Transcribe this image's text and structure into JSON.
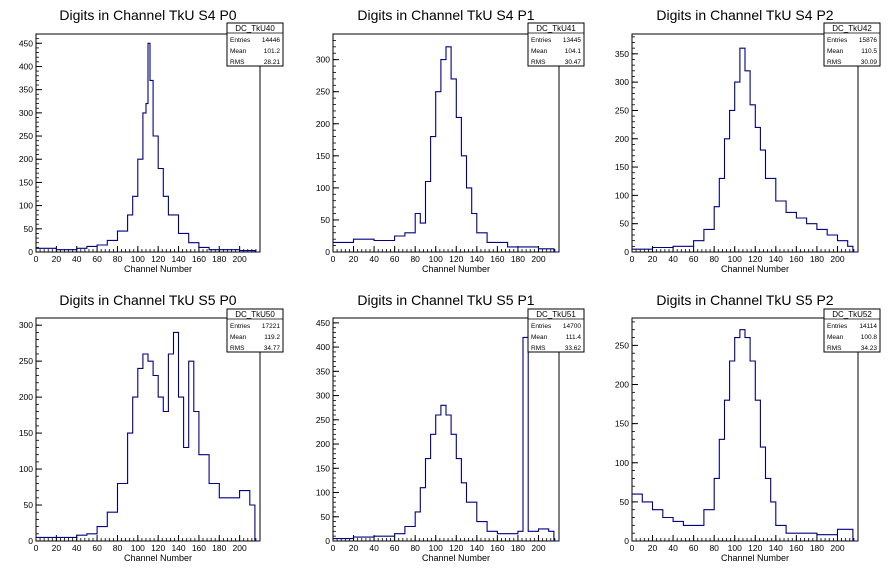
{
  "chart_data": [
    {
      "type": "histogram",
      "title": "Digits in Channel TkU S4 P0",
      "xlabel": "Channel Number",
      "xlim": [
        0,
        220
      ],
      "ylim": [
        0,
        470
      ],
      "xticks": [
        0,
        20,
        40,
        60,
        80,
        100,
        120,
        140,
        160,
        180,
        200
      ],
      "yticks": [
        0,
        50,
        100,
        150,
        200,
        250,
        300,
        350,
        400,
        450
      ],
      "stats": {
        "name": "DC_TkU40",
        "rows": [
          {
            "label": "Entries",
            "value": "14446"
          },
          {
            "label": "Mean",
            "value": "101.2"
          },
          {
            "label": "RMS",
            "value": "28.21"
          }
        ]
      },
      "bins": [
        [
          0,
          8
        ],
        [
          20,
          5
        ],
        [
          40,
          8
        ],
        [
          50,
          12
        ],
        [
          60,
          15
        ],
        [
          70,
          25
        ],
        [
          80,
          45
        ],
        [
          90,
          80
        ],
        [
          95,
          120
        ],
        [
          100,
          200
        ],
        [
          105,
          300
        ],
        [
          108,
          320
        ],
        [
          110,
          450
        ],
        [
          112,
          370
        ],
        [
          115,
          250
        ],
        [
          120,
          180
        ],
        [
          125,
          120
        ],
        [
          130,
          80
        ],
        [
          140,
          40
        ],
        [
          150,
          20
        ],
        [
          160,
          10
        ],
        [
          170,
          5
        ],
        [
          200,
          3
        ],
        [
          215,
          0
        ]
      ]
    },
    {
      "type": "histogram",
      "title": "Digits in Channel TkU S4 P1",
      "xlabel": "Channel Number",
      "xlim": [
        0,
        220
      ],
      "ylim": [
        0,
        340
      ],
      "xticks": [
        0,
        20,
        40,
        60,
        80,
        100,
        120,
        140,
        160,
        180,
        200
      ],
      "yticks": [
        0,
        50,
        100,
        150,
        200,
        250,
        300
      ],
      "stats": {
        "name": "DC_TkU41",
        "rows": [
          {
            "label": "Entries",
            "value": "13445"
          },
          {
            "label": "Mean",
            "value": "104.1"
          },
          {
            "label": "RMS",
            "value": "30.47"
          }
        ]
      },
      "bins": [
        [
          0,
          15
        ],
        [
          20,
          20
        ],
        [
          40,
          18
        ],
        [
          60,
          25
        ],
        [
          70,
          30
        ],
        [
          80,
          60
        ],
        [
          85,
          45
        ],
        [
          90,
          110
        ],
        [
          95,
          180
        ],
        [
          100,
          250
        ],
        [
          105,
          300
        ],
        [
          110,
          320
        ],
        [
          115,
          270
        ],
        [
          120,
          210
        ],
        [
          125,
          150
        ],
        [
          130,
          100
        ],
        [
          135,
          60
        ],
        [
          140,
          30
        ],
        [
          150,
          15
        ],
        [
          170,
          8
        ],
        [
          200,
          5
        ],
        [
          215,
          0
        ]
      ]
    },
    {
      "type": "histogram",
      "title": "Digits in Channel TkU S4 P2",
      "xlabel": "Channel Number",
      "xlim": [
        0,
        220
      ],
      "ylim": [
        0,
        385
      ],
      "xticks": [
        0,
        20,
        40,
        60,
        80,
        100,
        120,
        140,
        160,
        180,
        200
      ],
      "yticks": [
        0,
        50,
        100,
        150,
        200,
        250,
        300,
        350
      ],
      "stats": {
        "name": "DC_TkU42",
        "rows": [
          {
            "label": "Entries",
            "value": "15876"
          },
          {
            "label": "Mean",
            "value": "110.5"
          },
          {
            "label": "RMS",
            "value": "30.09"
          }
        ]
      },
      "bins": [
        [
          0,
          5
        ],
        [
          20,
          8
        ],
        [
          40,
          10
        ],
        [
          60,
          20
        ],
        [
          70,
          40
        ],
        [
          80,
          80
        ],
        [
          85,
          130
        ],
        [
          90,
          200
        ],
        [
          95,
          250
        ],
        [
          100,
          300
        ],
        [
          105,
          360
        ],
        [
          110,
          320
        ],
        [
          115,
          260
        ],
        [
          120,
          220
        ],
        [
          125,
          180
        ],
        [
          130,
          130
        ],
        [
          140,
          90
        ],
        [
          150,
          70
        ],
        [
          160,
          60
        ],
        [
          170,
          50
        ],
        [
          180,
          40
        ],
        [
          190,
          30
        ],
        [
          200,
          20
        ],
        [
          210,
          10
        ],
        [
          215,
          0
        ]
      ]
    },
    {
      "type": "histogram",
      "title": "Digits in Channel TkU S5 P0",
      "xlabel": "Channel Number",
      "xlim": [
        0,
        220
      ],
      "ylim": [
        0,
        310
      ],
      "xticks": [
        0,
        20,
        40,
        60,
        80,
        100,
        120,
        140,
        160,
        180,
        200
      ],
      "yticks": [
        0,
        50,
        100,
        150,
        200,
        250,
        300
      ],
      "stats": {
        "name": "DC_TkU50",
        "rows": [
          {
            "label": "Entries",
            "value": "17221"
          },
          {
            "label": "Mean",
            "value": "119.2"
          },
          {
            "label": "RMS",
            "value": "34.77"
          }
        ]
      },
      "bins": [
        [
          0,
          5
        ],
        [
          20,
          5
        ],
        [
          40,
          8
        ],
        [
          50,
          10
        ],
        [
          60,
          20
        ],
        [
          70,
          40
        ],
        [
          80,
          80
        ],
        [
          90,
          150
        ],
        [
          95,
          200
        ],
        [
          100,
          240
        ],
        [
          105,
          260
        ],
        [
          110,
          250
        ],
        [
          115,
          230
        ],
        [
          120,
          200
        ],
        [
          125,
          180
        ],
        [
          130,
          260
        ],
        [
          135,
          290
        ],
        [
          140,
          200
        ],
        [
          145,
          130
        ],
        [
          150,
          250
        ],
        [
          155,
          180
        ],
        [
          160,
          120
        ],
        [
          170,
          80
        ],
        [
          180,
          60
        ],
        [
          190,
          60
        ],
        [
          200,
          70
        ],
        [
          210,
          50
        ],
        [
          215,
          0
        ]
      ]
    },
    {
      "type": "histogram",
      "title": "Digits in Channel TkU S5 P1",
      "xlabel": "Channel Number",
      "xlim": [
        0,
        220
      ],
      "ylim": [
        0,
        460
      ],
      "xticks": [
        0,
        20,
        40,
        60,
        80,
        100,
        120,
        140,
        160,
        180,
        200
      ],
      "yticks": [
        0,
        50,
        100,
        150,
        200,
        250,
        300,
        350,
        400,
        450
      ],
      "stats": {
        "name": "DC_TkU51",
        "rows": [
          {
            "label": "Entries",
            "value": "14700"
          },
          {
            "label": "Mean",
            "value": "111.4"
          },
          {
            "label": "RMS",
            "value": "33.62"
          }
        ]
      },
      "bins": [
        [
          0,
          5
        ],
        [
          20,
          8
        ],
        [
          40,
          10
        ],
        [
          60,
          15
        ],
        [
          70,
          30
        ],
        [
          80,
          60
        ],
        [
          85,
          110
        ],
        [
          90,
          170
        ],
        [
          95,
          220
        ],
        [
          100,
          260
        ],
        [
          105,
          280
        ],
        [
          110,
          260
        ],
        [
          115,
          220
        ],
        [
          120,
          170
        ],
        [
          125,
          120
        ],
        [
          130,
          80
        ],
        [
          140,
          40
        ],
        [
          150,
          20
        ],
        [
          160,
          15
        ],
        [
          170,
          15
        ],
        [
          180,
          20
        ],
        [
          185,
          420
        ],
        [
          190,
          20
        ],
        [
          200,
          25
        ],
        [
          210,
          20
        ],
        [
          215,
          0
        ]
      ]
    },
    {
      "type": "histogram",
      "title": "Digits in Channel TkU S5 P2",
      "xlabel": "Channel Number",
      "xlim": [
        0,
        220
      ],
      "ylim": [
        0,
        285
      ],
      "xticks": [
        0,
        20,
        40,
        60,
        80,
        100,
        120,
        140,
        160,
        180,
        200
      ],
      "yticks": [
        0,
        50,
        100,
        150,
        200,
        250
      ],
      "stats": {
        "name": "DC_TkU52",
        "rows": [
          {
            "label": "Entries",
            "value": "14114"
          },
          {
            "label": "Mean",
            "value": "100.8"
          },
          {
            "label": "RMS",
            "value": "34.23"
          }
        ]
      },
      "bins": [
        [
          0,
          60
        ],
        [
          10,
          50
        ],
        [
          20,
          40
        ],
        [
          30,
          30
        ],
        [
          40,
          25
        ],
        [
          50,
          20
        ],
        [
          60,
          20
        ],
        [
          70,
          40
        ],
        [
          80,
          80
        ],
        [
          85,
          130
        ],
        [
          90,
          180
        ],
        [
          95,
          230
        ],
        [
          100,
          260
        ],
        [
          105,
          270
        ],
        [
          110,
          260
        ],
        [
          115,
          230
        ],
        [
          120,
          180
        ],
        [
          125,
          120
        ],
        [
          130,
          80
        ],
        [
          135,
          50
        ],
        [
          140,
          20
        ],
        [
          150,
          10
        ],
        [
          160,
          10
        ],
        [
          180,
          8
        ],
        [
          200,
          15
        ],
        [
          215,
          0
        ]
      ]
    }
  ]
}
